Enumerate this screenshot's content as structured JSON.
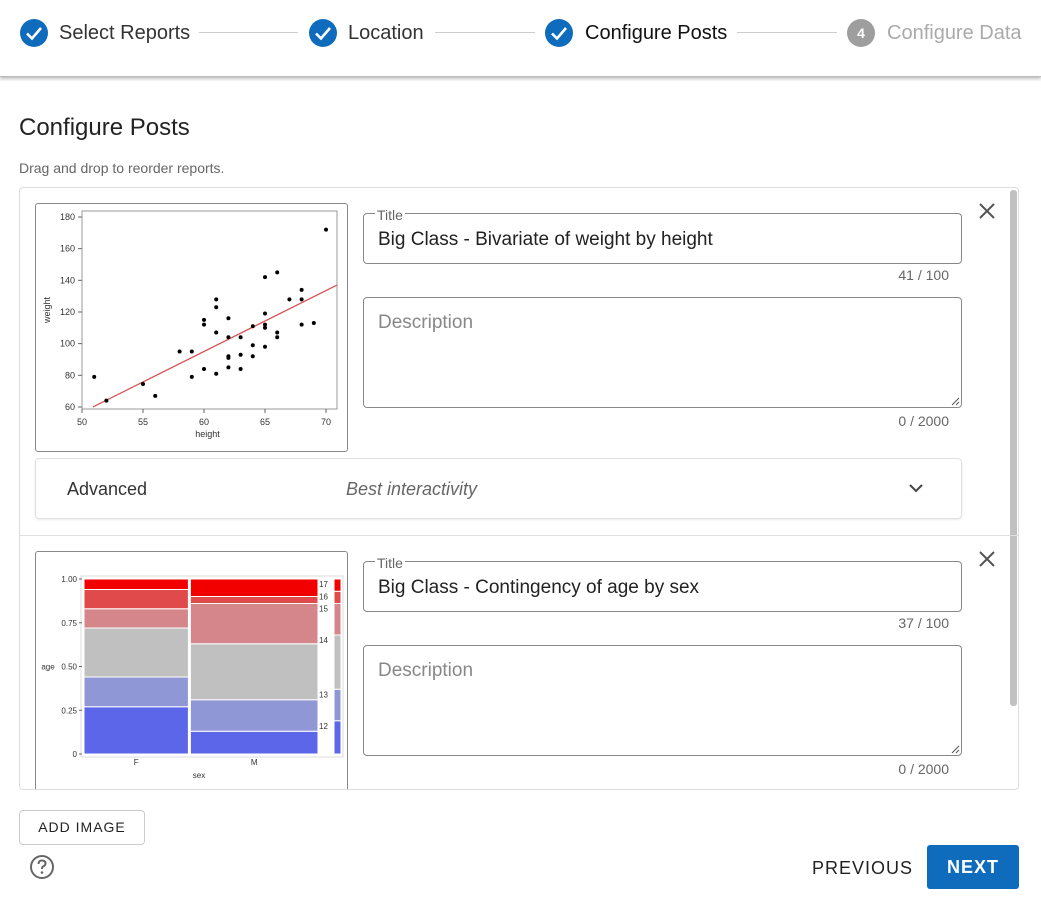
{
  "stepper": {
    "steps": [
      {
        "label": "Select Reports"
      },
      {
        "label": "Location"
      },
      {
        "label": "Configure Posts"
      },
      {
        "number": 4,
        "label": "Configure Data"
      }
    ]
  },
  "page": {
    "title": "Configure Posts",
    "hint": "Drag and drop to reorder reports."
  },
  "posts": [
    {
      "thumbnail": {
        "type": "scatter",
        "x_label": "height",
        "y_label": "weight",
        "xlim": [
          50,
          70.9
        ],
        "ylim": [
          58.7,
          183.8
        ],
        "xticks": [
          50,
          55,
          60,
          65,
          70
        ],
        "yticks": [
          60,
          80,
          100,
          120,
          140,
          160,
          180
        ],
        "color": "#000000",
        "x": [
          51,
          52,
          55,
          56,
          58,
          59,
          59,
          60,
          60,
          60,
          61,
          61,
          61,
          61,
          62,
          62,
          62,
          62,
          62,
          63,
          63,
          63,
          64,
          64,
          64,
          65,
          65,
          65,
          65,
          65,
          66,
          66,
          66,
          67,
          68,
          68,
          68,
          69,
          70
        ],
        "y": [
          79,
          64,
          74.5,
          67,
          95,
          95,
          79,
          115,
          112,
          84,
          128,
          123,
          107,
          81,
          116,
          104,
          92,
          91,
          85,
          104,
          93,
          84,
          111,
          99,
          92,
          142,
          119,
          112,
          110,
          98,
          145,
          107,
          104,
          128,
          134,
          128,
          112,
          113,
          172
        ],
        "fit": {
          "color": "#d9534f",
          "x": [
            50.9,
            70.9
          ],
          "y": [
            60,
            137
          ]
        }
      },
      "title_label": "Title",
      "title": "Big Class - Bivariate of weight by height",
      "title_count": "41 / 100",
      "description_placeholder": "Description",
      "description_count": "0 / 2000",
      "advanced": {
        "label": "Advanced",
        "value": "Best interactivity"
      }
    },
    {
      "thumbnail": {
        "type": "mosaic",
        "x_label": "sex",
        "y_label": "age",
        "ylim": [
          0,
          1
        ],
        "yticks": [
          {
            "value": 1,
            "label": "1.00"
          },
          {
            "value": 0.75,
            "label": "0.75"
          },
          {
            "value": 0.5,
            "label": "0.50"
          },
          {
            "value": 0.25,
            "label": "0.25"
          },
          0
        ],
        "categories": [
          "F",
          "M"
        ],
        "widths": [
          0.45,
          0.55
        ],
        "series": [
          {
            "name": "12",
            "color": "#5b67e8",
            "values": [
              0.27,
              0.13
            ],
            "margin": 0.19
          },
          {
            "name": "13",
            "color": "#9097d6",
            "values": [
              0.17,
              0.18
            ],
            "margin": 0.18
          },
          {
            "name": "14",
            "color": "#c0c0c0",
            "values": [
              0.28,
              0.32
            ],
            "margin": 0.31
          },
          {
            "name": "15",
            "color": "#d4868a",
            "values": [
              0.11,
              0.23
            ],
            "margin": 0.18
          },
          {
            "name": "16",
            "color": "#e04a4a",
            "values": [
              0.11,
              0.04
            ],
            "margin": 0.07
          },
          {
            "name": "17",
            "color": "#f20000",
            "values": [
              0.06,
              0.1
            ],
            "margin": 0.07
          }
        ]
      },
      "title_label": "Title",
      "title": "Big Class - Contingency of age by sex",
      "title_count": "37 / 100",
      "description_placeholder": "Description",
      "description_count": "0 / 2000"
    }
  ],
  "buttons": {
    "add_image": "ADD IMAGE",
    "previous": "PREVIOUS",
    "next": "NEXT"
  }
}
